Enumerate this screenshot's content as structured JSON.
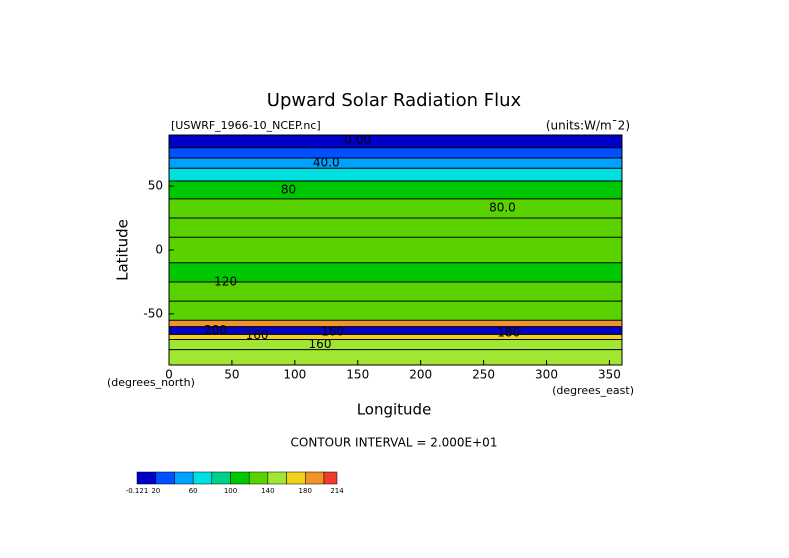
{
  "chart_data": {
    "type": "contour",
    "title": "Upward Solar Radiation Flux",
    "subtitle_left": "[USWRF_1966-10_NCEP.nc]",
    "subtitle_right": "(units:W/m¯2)",
    "x_label": "Longitude",
    "y_label": "Latitude",
    "x_units": "(degrees_east)",
    "y_units": "(degrees_north)",
    "footer": "CONTOUR INTERVAL = 2.000E+01",
    "xlim": [
      0,
      360
    ],
    "ylim": [
      -90,
      90
    ],
    "xticks": [
      0,
      50,
      100,
      150,
      200,
      250,
      300,
      350
    ],
    "yticks": [
      -50,
      0,
      50
    ],
    "field": {
      "lat_edges": [
        90,
        80,
        72,
        64,
        54,
        40,
        25,
        10,
        -10,
        -25,
        -40,
        -55,
        -60,
        -66,
        -70,
        -78,
        -90
      ],
      "values": [
        5,
        30,
        55,
        78,
        110,
        125,
        135,
        120,
        118,
        122,
        130,
        190,
        10,
        168,
        150,
        140
      ]
    },
    "annotations": [
      {
        "value": 0,
        "label": "0.00",
        "lon": 150,
        "lat": 86
      },
      {
        "value": 40,
        "label": "40.0",
        "lon": 125,
        "lat": 68
      },
      {
        "value": 80,
        "label": "80",
        "lon": 95,
        "lat": 47
      },
      {
        "value": 80,
        "label": "80.0",
        "lon": 265,
        "lat": 33
      },
      {
        "value": 120,
        "label": "120",
        "lon": 45,
        "lat": -25
      },
      {
        "value": 200,
        "label": "200",
        "lon": 37,
        "lat": -63
      },
      {
        "value": 160,
        "label": "160",
        "lon": 70,
        "lat": -67
      },
      {
        "value": 160,
        "label": "160",
        "lon": 130,
        "lat": -64
      },
      {
        "value": 160,
        "label": "160",
        "lon": 120,
        "lat": -74
      },
      {
        "value": 180,
        "label": "180",
        "lon": 270,
        "lat": -65
      }
    ],
    "colorbar": {
      "levels": [
        -0.121,
        20,
        40,
        60,
        80,
        100,
        120,
        140,
        160,
        180,
        200,
        214
      ],
      "colors": [
        "#0000c8",
        "#0050ff",
        "#00a0ff",
        "#00e0e0",
        "#00d08c",
        "#00c800",
        "#5ad200",
        "#a0e632",
        "#f0d21e",
        "#f09628",
        "#f03c2d",
        "#f0a0a0"
      ],
      "top": 214,
      "ticks": [
        -0.121,
        20,
        60,
        100,
        140,
        180,
        214
      ]
    }
  }
}
